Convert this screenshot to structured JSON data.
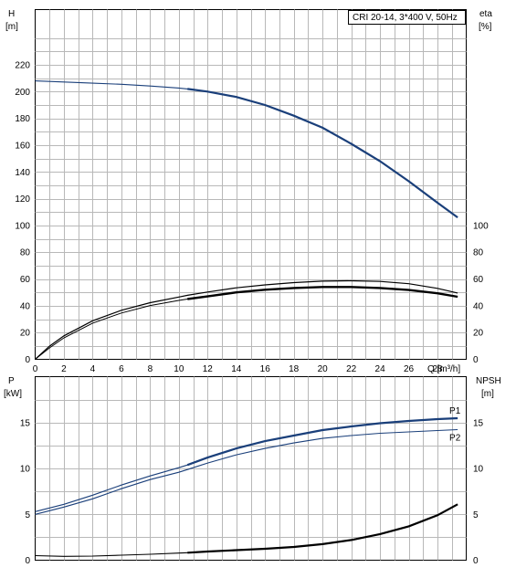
{
  "chart_data": [
    {
      "type": "line",
      "title": "CRI 20-14, 3*400 V, 50Hz",
      "xlabel": "Q [m³/h]",
      "x_ticks": [
        "0",
        "2",
        "4",
        "6",
        "8",
        "10",
        "12",
        "14",
        "16",
        "18",
        "20",
        "22",
        "24",
        "26",
        "28"
      ],
      "xlim": [
        0,
        30
      ],
      "ylabel_left": [
        "H",
        "[m]"
      ],
      "ylabel_right": [
        "eta",
        "[%]"
      ],
      "ylim_left": [
        0,
        220
      ],
      "y_ticks_left": [
        "0",
        "20",
        "40",
        "60",
        "80",
        "100",
        "120",
        "140",
        "160",
        "180",
        "200",
        "220"
      ],
      "ylim_right": [
        0,
        110
      ],
      "y_ticks_right": [
        "0",
        "20",
        "40",
        "60",
        "80",
        "100"
      ],
      "grid": true,
      "series": [
        {
          "axis": "left",
          "color": "#1a3f7a",
          "x": [
            0,
            2,
            4,
            6,
            8,
            10,
            10.6,
            12,
            14,
            16,
            18,
            20,
            22,
            24,
            26,
            28,
            29.4
          ],
          "y": [
            208,
            207.2,
            206.3,
            205.5,
            204.2,
            202.7,
            202,
            200,
            196,
            190,
            182,
            173,
            161,
            148,
            133,
            117,
            106
          ]
        },
        {
          "axis": "right",
          "color": "#000000",
          "x": [
            0,
            1,
            2,
            4,
            6,
            8,
            10,
            10.6,
            12,
            14,
            16,
            18,
            20,
            22,
            24,
            26,
            28,
            29.4
          ],
          "y": [
            0,
            9.8,
            17.5,
            28.8,
            36.6,
            42.3,
            46.5,
            47.8,
            50.3,
            53.4,
            55.6,
            57.3,
            58.4,
            58.7,
            58.2,
            56.5,
            53,
            49.5
          ]
        },
        {
          "axis": "right",
          "color": "#000000",
          "x": [
            0,
            1,
            2,
            4,
            6,
            8,
            10,
            10.6,
            12,
            14,
            16,
            18,
            20,
            22,
            24,
            26,
            28,
            29.4
          ],
          "y": [
            0,
            8.5,
            16,
            27,
            34.6,
            40.2,
            44,
            45,
            47,
            50,
            52,
            53.3,
            54,
            54,
            53.3,
            51.8,
            49.3,
            46.7
          ]
        }
      ]
    },
    {
      "type": "line",
      "xlim": [
        0,
        30
      ],
      "ylabel_left": [
        "P",
        "[kW]"
      ],
      "ylabel_right": [
        "NPSH",
        "[m]"
      ],
      "ylim_left": [
        0,
        20
      ],
      "y_ticks_left": [
        "0",
        "5",
        "10",
        "15"
      ],
      "ylim_right": [
        0,
        20
      ],
      "y_ticks_right": [
        "0",
        "5",
        "10",
        "15"
      ],
      "grid": true,
      "series": [
        {
          "name": "P1",
          "axis": "left",
          "color": "#1a3f7a",
          "x": [
            0,
            2,
            4,
            6,
            8,
            10,
            10.6,
            12,
            14,
            16,
            18,
            20,
            22,
            24,
            26,
            28,
            29.4
          ],
          "y": [
            5.3,
            6.1,
            7.1,
            8.2,
            9.2,
            10.1,
            10.4,
            11.2,
            12.2,
            13,
            13.6,
            14.2,
            14.6,
            14.95,
            15.2,
            15.4,
            15.5
          ]
        },
        {
          "name": "P2",
          "axis": "left",
          "color": "#1a3f7a",
          "x": [
            0,
            2,
            4,
            6,
            8,
            10,
            10.6,
            12,
            14,
            16,
            18,
            20,
            22,
            24,
            26,
            28,
            29.4
          ],
          "y": [
            5,
            5.8,
            6.7,
            7.8,
            8.8,
            9.6,
            9.9,
            10.6,
            11.5,
            12.2,
            12.8,
            13.3,
            13.6,
            13.85,
            14,
            14.15,
            14.25
          ]
        },
        {
          "axis": "right",
          "color": "#000000",
          "x": [
            0,
            2,
            4,
            6,
            8,
            10,
            10.6,
            12,
            14,
            16,
            18,
            20,
            22,
            24,
            26,
            28,
            29.4
          ],
          "y": [
            0.5,
            0.42,
            0.45,
            0.55,
            0.65,
            0.78,
            0.82,
            0.95,
            1.1,
            1.25,
            1.45,
            1.75,
            2.2,
            2.85,
            3.7,
            4.9,
            6.1
          ]
        }
      ]
    }
  ]
}
